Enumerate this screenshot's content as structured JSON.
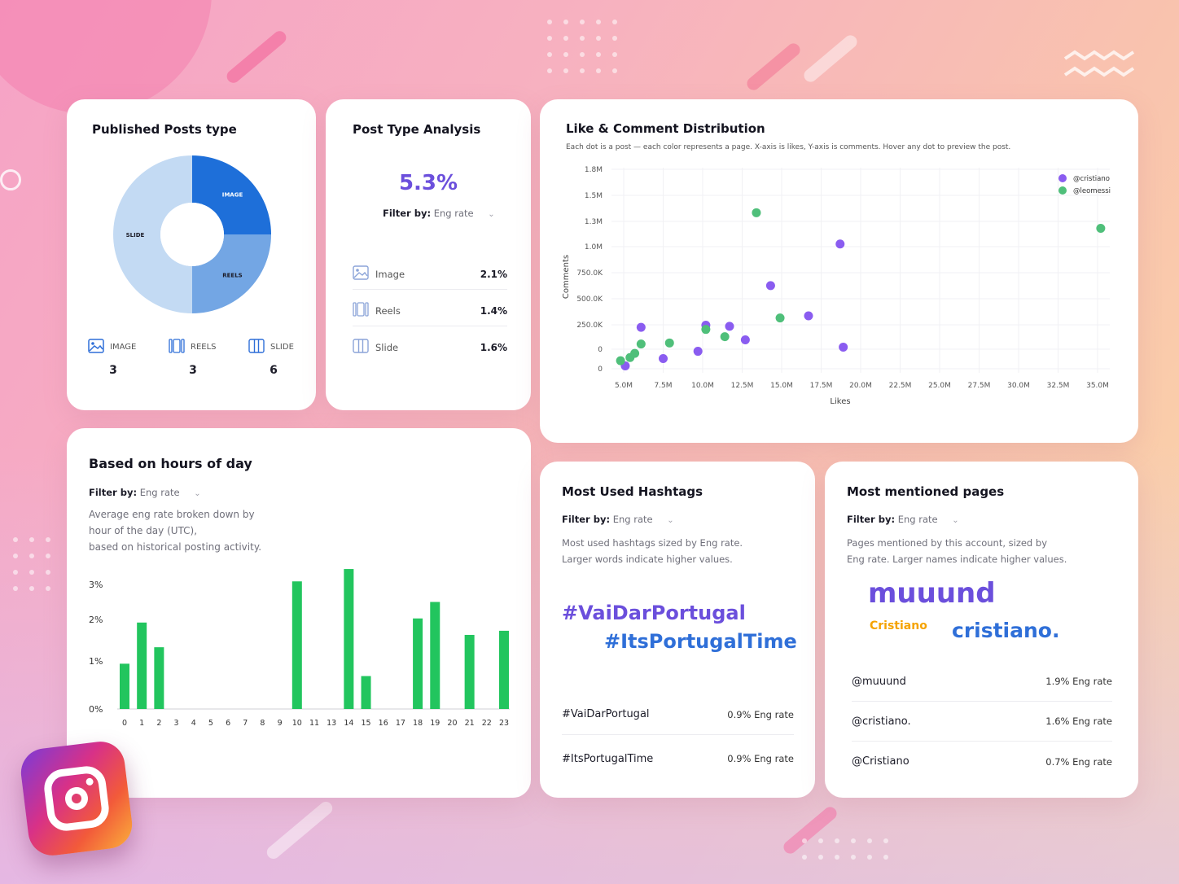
{
  "colors": {
    "purple": "#8a5cf0",
    "green": "#4fbf7a",
    "bar_green": "#22c55e",
    "image_blue": "#1e6fd9",
    "reels_blue": "#73a6e4",
    "slide_blue": "#c3daf3",
    "hashtag_purple": "#6b4fdc",
    "hashtag_blue": "#2f6fd8",
    "mention_orange": "#f5a300"
  },
  "published_posts": {
    "title": "Published Posts type",
    "chart_data": {
      "type": "pie",
      "slices": [
        {
          "label": "IMAGE",
          "value": 3
        },
        {
          "label": "REELS",
          "value": 3
        },
        {
          "label": "SLIDE",
          "value": 6
        }
      ]
    },
    "legend": [
      {
        "label": "IMAGE",
        "count": "3",
        "icon": "image-icon"
      },
      {
        "label": "REELS",
        "count": "3",
        "icon": "reels-icon"
      },
      {
        "label": "SLIDE",
        "count": "6",
        "icon": "slide-icon"
      }
    ]
  },
  "post_type_analysis": {
    "title": "Post Type Analysis",
    "big_value": "5.3%",
    "filter_label": "Filter by:",
    "filter_value": "Eng rate",
    "rows": [
      {
        "label": "Image",
        "value": "2.1%",
        "icon": "image-icon"
      },
      {
        "label": "Reels",
        "value": "1.4%",
        "icon": "reels-icon"
      },
      {
        "label": "Slide",
        "value": "1.6%",
        "icon": "slide-icon"
      }
    ]
  },
  "like_comment": {
    "title": "Like & Comment Distribution",
    "subtitle": "Each dot is a post — each color represents a page. X-axis is likes, Y-axis is comments. Hover any dot to preview the post.",
    "chart_data": {
      "type": "scatter",
      "xlabel": "Likes",
      "ylabel": "Comments",
      "x_ticks": [
        5,
        7.5,
        10,
        12.5,
        15,
        17.5,
        20,
        22.5,
        25,
        27.5,
        30,
        32.5,
        35
      ],
      "x_tick_labels": [
        "5.0M",
        "7.5M",
        "10.0M",
        "12.5M",
        "15.0M",
        "17.5M",
        "20.0M",
        "22.5M",
        "25.0M",
        "27.5M",
        "30.0M",
        "32.5M",
        "35.0M"
      ],
      "y_tick_labels": [
        "1.8M",
        "1.5M",
        "1.3M",
        "1.0M",
        "750.0K",
        "500.0K",
        "250.0K",
        "0",
        "0"
      ],
      "legend_position": "top-right",
      "series": [
        {
          "name": "@cristiano",
          "color": "#8a5cf0",
          "points": [
            [
              5.1,
              -160
            ],
            [
              6.1,
              210
            ],
            [
              7.5,
              -90
            ],
            [
              9.7,
              -20
            ],
            [
              10.2,
              230
            ],
            [
              11.7,
              220
            ],
            [
              12.7,
              90
            ],
            [
              14.3,
              610
            ],
            [
              16.7,
              320
            ],
            [
              18.7,
              1010
            ],
            [
              18.9,
              20
            ]
          ]
        },
        {
          "name": "@leomessi",
          "color": "#4fbf7a",
          "points": [
            [
              4.8,
              -110
            ],
            [
              5.4,
              -80
            ],
            [
              5.7,
              -40
            ],
            [
              6.1,
              50
            ],
            [
              7.9,
              60
            ],
            [
              10.2,
              190
            ],
            [
              11.4,
              120
            ],
            [
              13.4,
              1310
            ],
            [
              14.9,
              300
            ],
            [
              35.2,
              1160
            ]
          ]
        }
      ]
    }
  },
  "hours": {
    "title": "Based on hours of day",
    "filter_label": "Filter by:",
    "filter_value": "Eng rate",
    "desc_lines": [
      "Average eng rate broken down by",
      "hour of the day (UTC),",
      "based on historical posting activity."
    ],
    "chart_data": {
      "type": "bar",
      "categories": [
        "0",
        "1",
        "2",
        "3",
        "4",
        "5",
        "6",
        "7",
        "8",
        "9",
        "10",
        "11",
        "13",
        "14",
        "15",
        "16",
        "17",
        "18",
        "19",
        "20",
        "21",
        "22",
        "23"
      ],
      "values": [
        1.1,
        2.1,
        1.5,
        0,
        0,
        0,
        0,
        0,
        0,
        0,
        3.1,
        0,
        0,
        3.4,
        0.8,
        0,
        0,
        2.2,
        2.6,
        0,
        1.8,
        0,
        1.9
      ],
      "y_tick_labels": [
        "3%",
        "2%",
        "1%",
        "0%"
      ],
      "ylim": [
        0,
        3.5
      ]
    }
  },
  "hashtags": {
    "title": "Most Used Hashtags",
    "filter_label": "Filter by:",
    "filter_value": "Eng rate",
    "desc_lines": [
      "Most used hashtags sized by Eng rate.",
      "Larger words indicate higher values."
    ],
    "cloud": [
      "#VaiDarPortugal",
      "#ItsPortugalTime"
    ],
    "rows": [
      {
        "tag": "#VaiDarPortugal",
        "value": "0.9% Eng rate"
      },
      {
        "tag": "#ItsPortugalTime",
        "value": "0.9% Eng rate"
      }
    ]
  },
  "mentions": {
    "title": "Most mentioned pages",
    "filter_label": "Filter by:",
    "filter_value": "Eng rate",
    "desc_lines": [
      "Pages mentioned by this account, sized by",
      "Eng rate. Larger names indicate higher values."
    ],
    "cloud": [
      "muuund",
      "Cristiano",
      "cristiano."
    ],
    "rows": [
      {
        "page": "@muuund",
        "value": "1.9% Eng rate"
      },
      {
        "page": "@cristiano.",
        "value": "1.6% Eng rate"
      },
      {
        "page": "@Cristiano",
        "value": "0.7% Eng rate"
      }
    ]
  }
}
